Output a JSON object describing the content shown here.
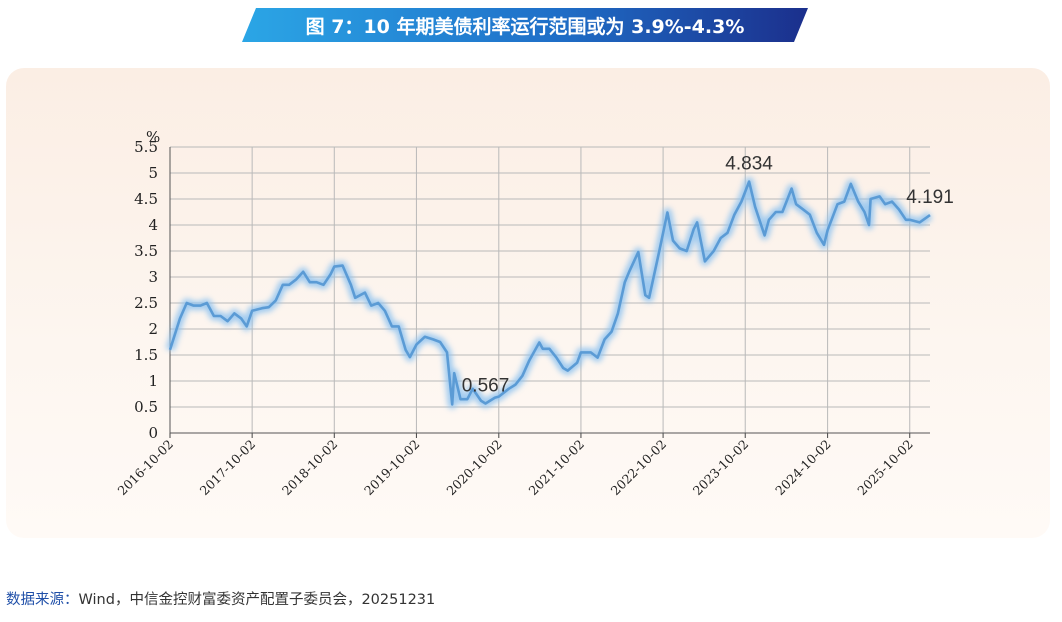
{
  "title": "图 7：10 年期美债利率运行范围或为 3.9%-4.3%",
  "source": {
    "label": "数据来源：",
    "text": "Wind，中信金控财富委资产配置子委员会，20251231"
  },
  "colors": {
    "line": "#5b9bd5",
    "glow": "#8fc3f0",
    "grid": "#b9b9b9"
  },
  "chart_data": {
    "type": "line",
    "ylabel": "%",
    "ylim": [
      0,
      5.5
    ],
    "yticks": [
      "0",
      "0.5",
      "1",
      "1.5",
      "2",
      "2.5",
      "3",
      "3.5",
      "4",
      "4.5",
      "5",
      "5.5"
    ],
    "xticks": [
      "2016-10-02",
      "2017-10-02",
      "2018-10-02",
      "2019-10-02",
      "2020-10-02",
      "2021-10-02",
      "2022-10-02",
      "2023-10-02",
      "2024-10-02",
      "2025-10-02"
    ],
    "grid": true,
    "annotations": [
      {
        "x": "2020-08-04",
        "y": 0.567,
        "text": "0.567"
      },
      {
        "x": "2023-10-19",
        "y": 4.834,
        "text": "4.834"
      },
      {
        "x": "2025-12-31",
        "y": 4.191,
        "text": "4.191"
      }
    ],
    "series": [
      {
        "x": [
          "2016-10-02",
          "2016-11-15",
          "2016-12-15",
          "2017-01-15",
          "2017-02-15",
          "2017-03-15",
          "2017-04-15",
          "2017-05-15",
          "2017-06-15",
          "2017-07-15",
          "2017-08-15",
          "2017-09-08",
          "2017-10-02",
          "2017-11-15",
          "2017-12-15",
          "2018-01-15",
          "2018-02-15",
          "2018-03-15",
          "2018-04-15",
          "2018-05-17",
          "2018-06-15",
          "2018-07-15",
          "2018-08-15",
          "2018-09-15",
          "2018-10-02",
          "2018-11-08",
          "2018-12-15",
          "2019-01-03",
          "2019-02-15",
          "2019-03-15",
          "2019-04-15",
          "2019-05-15",
          "2019-06-15",
          "2019-07-15",
          "2019-08-15",
          "2019-09-03",
          "2019-10-02",
          "2019-11-08",
          "2019-12-15",
          "2020-01-15",
          "2020-02-15",
          "2020-03-09",
          "2020-03-18",
          "2020-04-15",
          "2020-05-15",
          "2020-06-08",
          "2020-07-15",
          "2020-08-04",
          "2020-09-15",
          "2020-10-02",
          "2020-11-15",
          "2020-12-15",
          "2021-01-15",
          "2021-02-15",
          "2021-03-31",
          "2021-04-15",
          "2021-05-15",
          "2021-06-15",
          "2021-07-15",
          "2021-08-04",
          "2021-09-15",
          "2021-10-02",
          "2021-11-15",
          "2021-12-15",
          "2022-01-15",
          "2022-02-15",
          "2022-03-15",
          "2022-04-15",
          "2022-05-06",
          "2022-06-14",
          "2022-07-15",
          "2022-08-01",
          "2022-09-15",
          "2022-10-21",
          "2022-11-15",
          "2022-12-15",
          "2023-01-15",
          "2023-02-15",
          "2023-03-02",
          "2023-04-06",
          "2023-05-15",
          "2023-06-15",
          "2023-07-15",
          "2023-08-15",
          "2023-09-15",
          "2023-10-19",
          "2023-11-15",
          "2023-12-27",
          "2024-01-15",
          "2024-02-15",
          "2024-03-15",
          "2024-04-25",
          "2024-05-15",
          "2024-06-15",
          "2024-07-15",
          "2024-08-15",
          "2024-09-16",
          "2024-10-02",
          "2024-11-15",
          "2024-12-15",
          "2025-01-13",
          "2025-02-15",
          "2025-03-15",
          "2025-04-04",
          "2025-04-11",
          "2025-05-21",
          "2025-06-15",
          "2025-07-15",
          "2025-08-15",
          "2025-09-15",
          "2025-10-02",
          "2025-11-15",
          "2025-12-31"
        ],
        "y": [
          1.6,
          2.2,
          2.5,
          2.45,
          2.45,
          2.5,
          2.25,
          2.25,
          2.15,
          2.3,
          2.2,
          2.05,
          2.35,
          2.4,
          2.42,
          2.55,
          2.85,
          2.85,
          2.95,
          3.1,
          2.9,
          2.9,
          2.85,
          3.05,
          3.2,
          3.22,
          2.85,
          2.6,
          2.7,
          2.45,
          2.5,
          2.35,
          2.05,
          2.05,
          1.6,
          1.46,
          1.7,
          1.85,
          1.8,
          1.75,
          1.55,
          0.55,
          1.15,
          0.65,
          0.65,
          0.85,
          0.62,
          0.567,
          0.68,
          0.7,
          0.85,
          0.93,
          1.1,
          1.4,
          1.74,
          1.62,
          1.62,
          1.45,
          1.25,
          1.2,
          1.35,
          1.55,
          1.55,
          1.45,
          1.8,
          1.95,
          2.3,
          2.9,
          3.12,
          3.48,
          2.65,
          2.6,
          3.5,
          4.24,
          3.7,
          3.55,
          3.5,
          3.92,
          4.05,
          3.3,
          3.5,
          3.75,
          3.85,
          4.2,
          4.45,
          4.834,
          4.35,
          3.8,
          4.1,
          4.25,
          4.25,
          4.7,
          4.4,
          4.3,
          4.2,
          3.85,
          3.62,
          3.9,
          4.4,
          4.45,
          4.79,
          4.45,
          4.25,
          4.0,
          4.5,
          4.55,
          4.4,
          4.45,
          4.3,
          4.1,
          4.1,
          4.05,
          4.191
        ]
      }
    ]
  }
}
